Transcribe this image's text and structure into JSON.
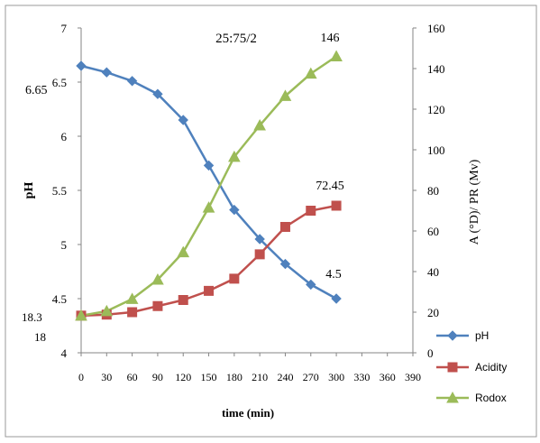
{
  "chart_data": {
    "type": "line",
    "annotation_top": "25:75/2",
    "xlabel": "time (min)",
    "ylabel_left": "pH",
    "ylabel_right": "A (°D)/ PR (Mv)",
    "x_ticks": [
      "0",
      "30",
      "60",
      "90",
      "120",
      "150",
      "180",
      "210",
      "240",
      "270",
      "300",
      "330",
      "360",
      "390"
    ],
    "y_left_ticks": [
      "4",
      "4.5",
      "5",
      "5.5",
      "6",
      "6.5",
      "7"
    ],
    "y_right_ticks": [
      "0",
      "20",
      "40",
      "60",
      "80",
      "100",
      "120",
      "140",
      "160"
    ],
    "xlim": [
      0,
      390
    ],
    "ylim_left": [
      4,
      7
    ],
    "ylim_right": [
      0,
      160
    ],
    "grid": false,
    "legend_position": "right",
    "x": [
      0,
      30,
      60,
      90,
      120,
      150,
      180,
      210,
      240,
      270,
      300
    ],
    "series": [
      {
        "name": "pH",
        "axis": "left",
        "color": "#4f81bd",
        "marker": "diamond",
        "values": [
          6.65,
          6.59,
          6.51,
          6.39,
          6.15,
          5.73,
          5.32,
          5.05,
          4.82,
          4.63,
          4.5
        ]
      },
      {
        "name": "Acidity",
        "axis": "right",
        "color": "#c0504d",
        "marker": "square",
        "values": [
          18.3,
          18.8,
          20,
          23,
          26,
          30.5,
          36.5,
          48.5,
          62,
          70,
          72.45
        ]
      },
      {
        "name": "Rodox",
        "axis": "right",
        "color": "#9bbb59",
        "marker": "triangle",
        "values": [
          18.3,
          20.5,
          26.5,
          36,
          49.5,
          71.5,
          96.5,
          112,
          126.5,
          137.5,
          146
        ]
      }
    ],
    "data_labels": [
      {
        "text": "6.65"
      },
      {
        "text": "18.3"
      },
      {
        "text": "18"
      },
      {
        "text": "146"
      },
      {
        "text": "72.45"
      },
      {
        "text": "4.5"
      }
    ]
  }
}
